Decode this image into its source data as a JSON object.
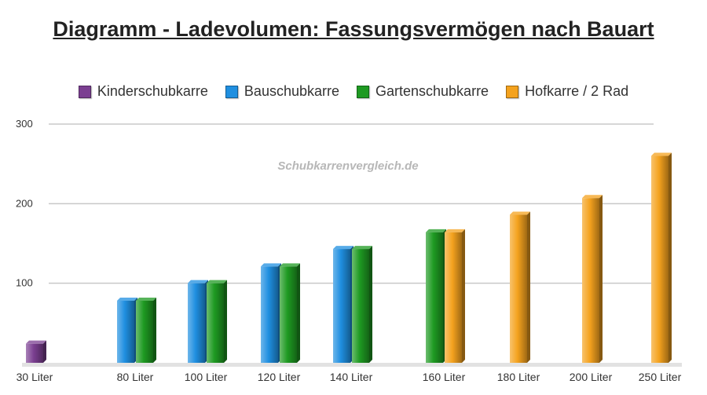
{
  "title": "Diagramm - Ladevolumen: Fassungsvermögen nach Bauart",
  "watermark": "Schubkarrenvergleich.de",
  "chart_data": {
    "type": "bar",
    "categories": [
      "30 Liter",
      "80 Liter",
      "100 Liter",
      "120 Liter",
      "140 Liter",
      "160 Liter",
      "180 Liter",
      "200 Liter",
      "250  Liter"
    ],
    "series": [
      {
        "name": "Kinderschubkarre",
        "color": "#7b3f91",
        "values": [
          24,
          null,
          null,
          null,
          null,
          null,
          null,
          null,
          null
        ]
      },
      {
        "name": "Bauschubkarre",
        "color": "#1f8fe0",
        "values": [
          null,
          78,
          100,
          121,
          143,
          null,
          null,
          null,
          null
        ]
      },
      {
        "name": "Gartenschubkarre",
        "color": "#1e9a22",
        "values": [
          null,
          78,
          100,
          121,
          143,
          164,
          null,
          null,
          null
        ]
      },
      {
        "name": "Hofkarre / 2 Rad",
        "color": "#f4a21e",
        "values": [
          null,
          null,
          null,
          null,
          null,
          164,
          186,
          207,
          260
        ]
      }
    ],
    "y_ticks": [
      100,
      200,
      300
    ],
    "ylim": [
      0,
      300
    ],
    "grid": true,
    "legend_position": "top"
  }
}
